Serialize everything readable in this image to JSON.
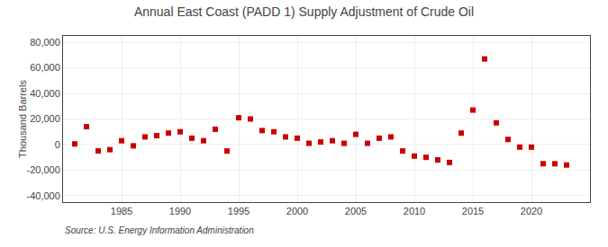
{
  "chart_data": {
    "type": "scatter",
    "title": "Annual East Coast (PADD 1) Supply Adjustment of Crude Oil",
    "ylabel": "Thousand Barrels",
    "annotations": [
      "Source: U.S. Energy Information Administration"
    ],
    "x": [
      1981,
      1982,
      1983,
      1984,
      1985,
      1986,
      1987,
      1988,
      1989,
      1990,
      1991,
      1992,
      1993,
      1994,
      1995,
      1996,
      1997,
      1998,
      1999,
      2000,
      2001,
      2002,
      2003,
      2004,
      2005,
      2006,
      2007,
      2008,
      2009,
      2010,
      2011,
      2012,
      2013,
      2014,
      2015,
      2016,
      2017,
      2018,
      2019,
      2020,
      2021,
      2022,
      2023
    ],
    "values": [
      500,
      14000,
      -5000,
      -4000,
      3000,
      -1000,
      6000,
      7000,
      9000,
      10000,
      5000,
      3000,
      12000,
      -5000,
      21000,
      20000,
      11000,
      10000,
      6000,
      5000,
      1000,
      2000,
      3000,
      1000,
      8000,
      1000,
      5000,
      6000,
      -5000,
      -9000,
      -10000,
      -12000,
      -14000,
      9000,
      27000,
      67000,
      17000,
      4000,
      -2000,
      -2000,
      -15000,
      -15000,
      -16000
    ],
    "color": "#cc0000",
    "marker": "square",
    "xlim": [
      1980,
      2025
    ],
    "xticks": [
      1985,
      1990,
      1995,
      2000,
      2005,
      2010,
      2015,
      2020
    ],
    "ylim": [
      -45000,
      85000
    ],
    "yticks": [
      {
        "value": -40000,
        "label": "-40,000"
      },
      {
        "value": -20000,
        "label": "-20,000"
      },
      0,
      {
        "value": 20000,
        "label": "20,000"
      },
      {
        "value": 40000,
        "label": "40,000"
      },
      {
        "value": 60000,
        "label": "60,000"
      },
      {
        "value": 80000,
        "label": "80,000"
      }
    ],
    "grid": true
  }
}
